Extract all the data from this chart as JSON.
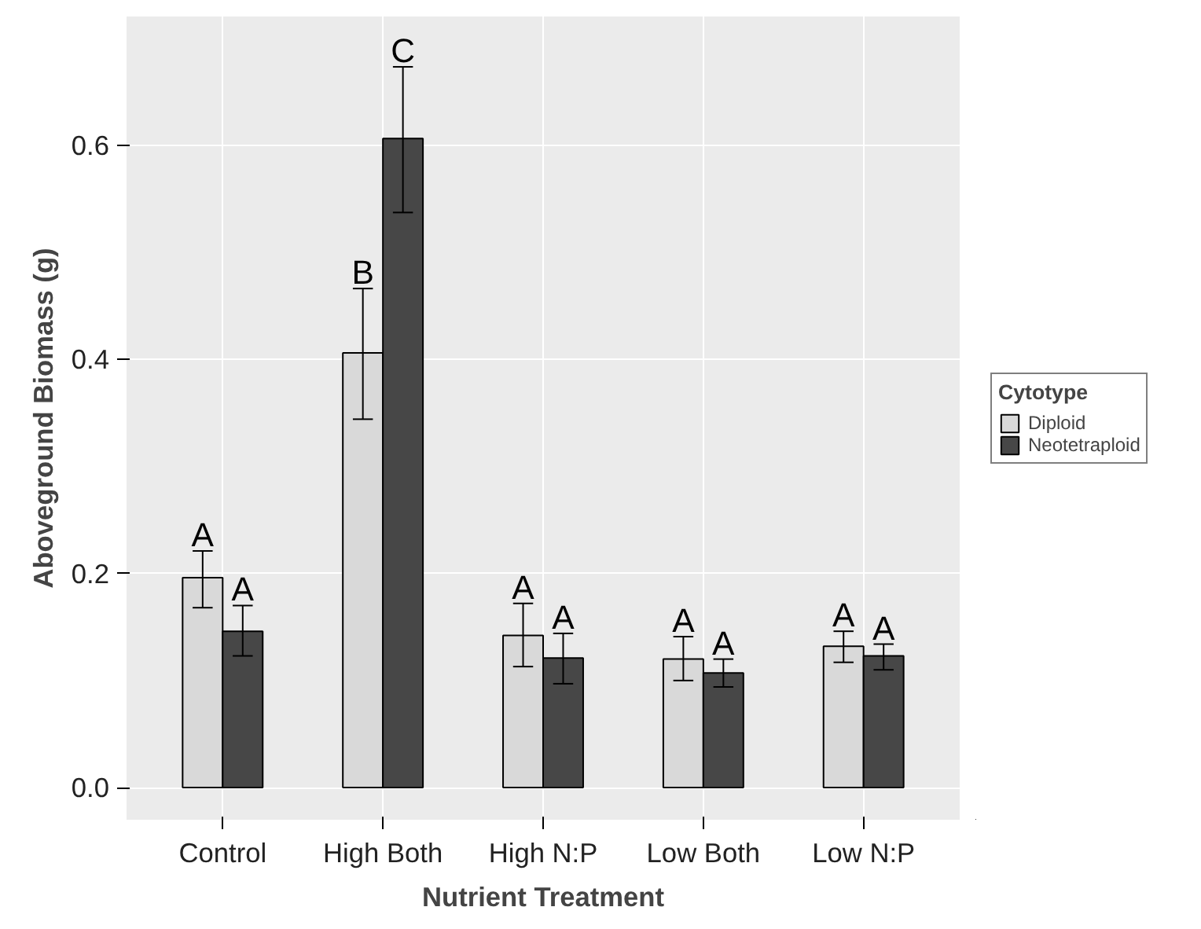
{
  "chart_data": {
    "type": "bar",
    "xlabel": "Nutrient Treatment",
    "ylabel": "Aboveground Biomass (g)",
    "legend_title": "Cytotype",
    "categories": [
      "Control",
      "High Both",
      "High N:P",
      "Low Both",
      "Low N:P"
    ],
    "series": [
      {
        "name": "Diploid",
        "color": "#d9d9d9",
        "values": [
          0.196,
          0.406,
          0.142,
          0.12,
          0.132
        ],
        "errors": [
          [
            0.168,
            0.221
          ],
          [
            0.344,
            0.466
          ],
          [
            0.113,
            0.172
          ],
          [
            0.1,
            0.141
          ],
          [
            0.117,
            0.146
          ]
        ]
      },
      {
        "name": "Neotetraploid",
        "color": "#474747",
        "values": [
          0.146,
          0.606,
          0.121,
          0.107,
          0.123
        ],
        "errors": [
          [
            0.123,
            0.17
          ],
          [
            0.537,
            0.673
          ],
          [
            0.097,
            0.144
          ],
          [
            0.094,
            0.12
          ],
          [
            0.11,
            0.134
          ]
        ]
      }
    ],
    "ylim": [
      -0.03,
      0.72
    ],
    "yticks": [
      {
        "value": 0,
        "label": "0.0"
      },
      0.2,
      0.4,
      0.6
    ],
    "grid": true,
    "legend": "right",
    "annotations": [
      "A",
      "A",
      "B",
      "C",
      "A",
      "A",
      "A",
      "A",
      "A",
      "A"
    ]
  }
}
